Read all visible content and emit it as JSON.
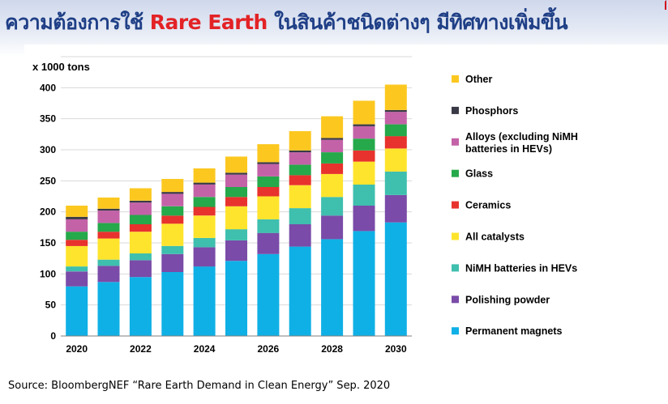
{
  "header": {
    "title_before": "ความต้องการใช้ ",
    "title_accent": "Rare Earth",
    "title_after": " ในสินค้าชนิดต่างๆ มีทิศทางเพิ่มขึ้น",
    "title_color": "#1f3f86",
    "accent_color": "#e32226"
  },
  "source": "Source: BloombergNEF “Rare Earth Demand in Clean Energy” Sep. 2020",
  "chart_data": {
    "type": "bar",
    "stacked": true,
    "ylabel": "x 1000  tons",
    "ylim": [
      0,
      450
    ],
    "yticks": [
      0,
      50,
      100,
      150,
      200,
      250,
      300,
      350,
      400,
      450
    ],
    "xtick_labels": [
      "2020",
      "2022",
      "2024",
      "2026",
      "2028",
      "2030"
    ],
    "categories": [
      "2020",
      "2021",
      "2022",
      "2023",
      "2024",
      "2025",
      "2026",
      "2027",
      "2028",
      "2029",
      "2030"
    ],
    "grid": true,
    "legend_position": "right",
    "series": [
      {
        "name": "Permanent magnets",
        "color": "#0fb0e6",
        "values": [
          80,
          87,
          95,
          103,
          112,
          121,
          132,
          144,
          156,
          169,
          183
        ]
      },
      {
        "name": "Polishing powder",
        "color": "#7a4ba8",
        "values": [
          24,
          26,
          27,
          29,
          31,
          33,
          34,
          36,
          38,
          41,
          44
        ]
      },
      {
        "name": "NiMH batteries in HEVs",
        "color": "#3fbfae",
        "values": [
          8,
          10,
          11,
          13,
          15,
          18,
          22,
          26,
          30,
          34,
          38
        ]
      },
      {
        "name": "All catalysts",
        "color": "#ffe42e",
        "values": [
          33,
          34,
          35,
          36,
          36,
          37,
          37,
          37,
          37,
          37,
          37
        ]
      },
      {
        "name": "Ceramics",
        "color": "#e8322d",
        "values": [
          10,
          11,
          12,
          13,
          14,
          15,
          15,
          16,
          17,
          18,
          20
        ]
      },
      {
        "name": "Glass",
        "color": "#25a94a",
        "values": [
          13,
          14,
          15,
          15,
          16,
          16,
          17,
          17,
          18,
          19,
          19
        ]
      },
      {
        "name": "Alloys (excluding NiMH batteries in HEVs)",
        "color": "#c462a8",
        "values": [
          20,
          20,
          20,
          20,
          20,
          20,
          20,
          20,
          20,
          20,
          20
        ]
      },
      {
        "name": "Phosphors",
        "color": "#3a3a46",
        "values": [
          4,
          3,
          3,
          3,
          3,
          3,
          3,
          3,
          3,
          3,
          3
        ]
      },
      {
        "name": "Other",
        "color": "#fcc820",
        "values": [
          18,
          18,
          20,
          21,
          23,
          26,
          29,
          31,
          35,
          38,
          41
        ]
      }
    ],
    "legend_order": [
      {
        "name": "Other",
        "label": [
          "Other"
        ]
      },
      {
        "name": "Phosphors",
        "label": [
          "Phosphors"
        ]
      },
      {
        "name": "Alloys (excluding NiMH batteries in HEVs)",
        "label": [
          "Alloys (excluding NiMH",
          "batteries in HEVs)"
        ]
      },
      {
        "name": "Glass",
        "label": [
          "Glass"
        ]
      },
      {
        "name": "Ceramics",
        "label": [
          "Ceramics"
        ]
      },
      {
        "name": "All catalysts",
        "label": [
          "All catalysts"
        ]
      },
      {
        "name": "NiMH batteries in HEVs",
        "label": [
          "NiMH batteries in HEVs"
        ]
      },
      {
        "name": "Polishing powder",
        "label": [
          "Polishing powder"
        ]
      },
      {
        "name": "Permanent magnets",
        "label": [
          "Permanent magnets"
        ]
      }
    ]
  }
}
